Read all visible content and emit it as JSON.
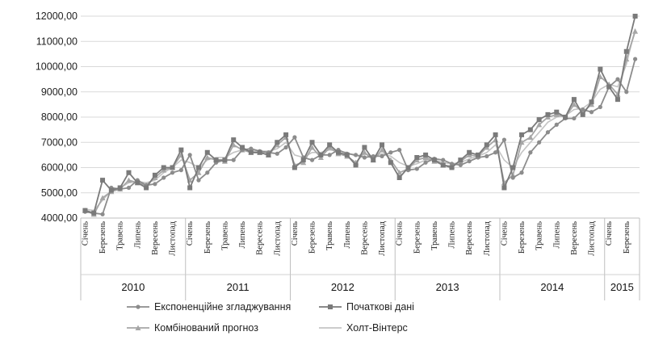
{
  "chart_data": {
    "type": "line",
    "title": "",
    "xlabel": "",
    "ylabel": "",
    "ylim": [
      4000,
      12000
    ],
    "yticks": [
      "4000,00",
      "5000,00",
      "6000,00",
      "7000,00",
      "8000,00",
      "9000,00",
      "10000,00",
      "11000,00",
      "12000,00"
    ],
    "grid": true,
    "legend_position": "bottom",
    "year_groups": [
      {
        "label": "2010",
        "months": 12
      },
      {
        "label": "2011",
        "months": 12
      },
      {
        "label": "2012",
        "months": 12
      },
      {
        "label": "2013",
        "months": 12
      },
      {
        "label": "2014",
        "months": 12
      },
      {
        "label": "2015",
        "months": 4
      }
    ],
    "month_tick_labels": [
      "Січень",
      "Березень",
      "Травень",
      "Липень",
      "Вересень",
      "Листопад"
    ],
    "series": [
      {
        "name": "Початкові дані",
        "color": "#7a7a7a",
        "marker": "square",
        "values": [
          4300,
          4200,
          5500,
          5100,
          5200,
          5800,
          5400,
          5200,
          5700,
          6000,
          6000,
          6700,
          5200,
          6000,
          6600,
          6300,
          6300,
          7100,
          6800,
          6600,
          6600,
          6500,
          7000,
          7300,
          6000,
          6300,
          7000,
          6500,
          6900,
          6600,
          6500,
          6100,
          6800,
          6300,
          6900,
          6200,
          5600,
          6000,
          6400,
          6500,
          6300,
          6100,
          6000,
          6300,
          6600,
          6500,
          6900,
          7300,
          5200,
          6000,
          7300,
          7500,
          7900,
          8100,
          8200,
          8000,
          8700,
          8100,
          8600,
          9900,
          9200,
          8700,
          10600,
          12000
        ]
      },
      {
        "name": "Експоненційне згладжування",
        "color": "#8c8c8c",
        "marker": "circle",
        "values": [
          4250,
          4200,
          4150,
          5200,
          5150,
          5200,
          5500,
          5300,
          5350,
          5600,
          5800,
          5900,
          6500,
          5500,
          5800,
          6200,
          6300,
          6300,
          6700,
          6750,
          6650,
          6600,
          6550,
          6800,
          7200,
          6400,
          6300,
          6500,
          6500,
          6700,
          6550,
          6500,
          6400,
          6450,
          6450,
          6600,
          6700,
          5900,
          5950,
          6200,
          6350,
          6300,
          6150,
          6100,
          6250,
          6400,
          6450,
          6600,
          7100,
          5600,
          5800,
          6600,
          7000,
          7400,
          7700,
          7950,
          7950,
          8300,
          8200,
          8400,
          9200,
          9500,
          9000,
          10300
        ]
      },
      {
        "name": "Комбінований прогноз",
        "color": "#a6a6a6",
        "marker": "triangle",
        "values": [
          4300,
          4150,
          4800,
          5050,
          5150,
          5500,
          5400,
          5300,
          5600,
          5900,
          6000,
          6500,
          5500,
          5800,
          6400,
          6300,
          6250,
          6900,
          6700,
          6600,
          6600,
          6500,
          6900,
          7200,
          6100,
          6200,
          6800,
          6400,
          6800,
          6550,
          6450,
          6200,
          6600,
          6300,
          6700,
          6300,
          5800,
          5950,
          6300,
          6400,
          6250,
          6100,
          6050,
          6250,
          6500,
          6450,
          6800,
          7100,
          5400,
          5700,
          7000,
          7200,
          7700,
          8000,
          8100,
          8000,
          8500,
          8200,
          8500,
          9600,
          9300,
          8900,
          10300,
          11400
        ]
      },
      {
        "name": "Холт-Вінтерс",
        "color": "#c4c4c4",
        "marker": "none",
        "values": [
          4350,
          4300,
          4700,
          5100,
          5200,
          5400,
          5450,
          5400,
          5500,
          5800,
          6000,
          6300,
          6200,
          6000,
          6300,
          6400,
          6400,
          6600,
          6700,
          6650,
          6650,
          6650,
          6750,
          7000,
          6500,
          6400,
          6600,
          6600,
          6700,
          6650,
          6600,
          6450,
          6550,
          6450,
          6550,
          6450,
          6200,
          6050,
          6150,
          6300,
          6300,
          6200,
          6150,
          6200,
          6350,
          6450,
          6600,
          6900,
          6300,
          6000,
          6600,
          7000,
          7400,
          7800,
          8000,
          8050,
          8300,
          8350,
          8600,
          9100,
          9300,
          9200,
          10100,
          11500
        ]
      }
    ]
  }
}
